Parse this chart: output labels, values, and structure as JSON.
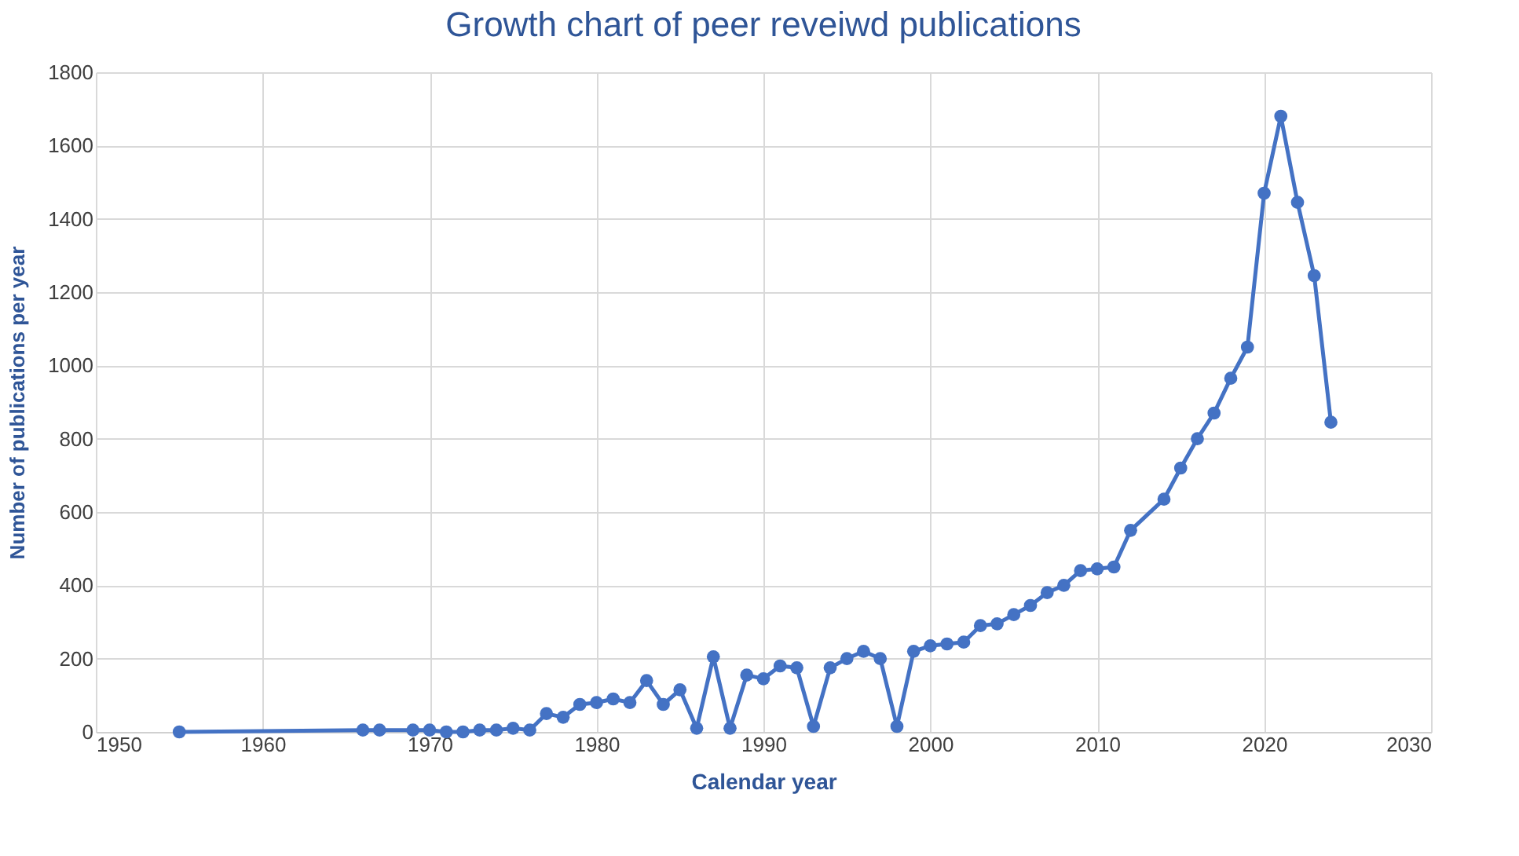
{
  "chart_data": {
    "type": "line",
    "title": "Growth chart of peer reveiwd publications",
    "xlabel": "Calendar year",
    "ylabel": "Number of publications  per year",
    "x": [
      1955,
      1966,
      1967,
      1969,
      1970,
      1971,
      1972,
      1973,
      1974,
      1975,
      1976,
      1977,
      1978,
      1979,
      1980,
      1981,
      1982,
      1983,
      1984,
      1985,
      1986,
      1987,
      1988,
      1989,
      1990,
      1991,
      1992,
      1993,
      1994,
      1995,
      1996,
      1997,
      1998,
      1999,
      2000,
      2001,
      2002,
      2003,
      2004,
      2005,
      2006,
      2007,
      2008,
      2009,
      2010,
      2011,
      2012,
      2014,
      2015,
      2016,
      2017,
      2018,
      2019,
      2020,
      2021,
      2022,
      2023,
      2024
    ],
    "series": [
      {
        "color": "#4472c4",
        "values": [
          0,
          5,
          5,
          5,
          5,
          0,
          0,
          5,
          5,
          10,
          5,
          50,
          40,
          75,
          80,
          90,
          80,
          140,
          75,
          115,
          10,
          205,
          10,
          155,
          145,
          180,
          175,
          15,
          175,
          200,
          220,
          200,
          15,
          220,
          235,
          240,
          245,
          290,
          295,
          320,
          345,
          380,
          400,
          440,
          445,
          450,
          550,
          635,
          720,
          800,
          870,
          965,
          1050,
          1470,
          1680,
          1445,
          1245,
          845
        ]
      }
    ],
    "xlim": [
      1950,
      2030
    ],
    "xticks": [
      1950,
      1960,
      1970,
      1980,
      1990,
      2000,
      2010,
      2020,
      2030
    ],
    "ylim": [
      0,
      1800
    ],
    "yticks": [
      0,
      200,
      400,
      600,
      800,
      1000,
      1200,
      1400,
      1600,
      1800
    ],
    "grid": true,
    "marker": "circle",
    "line_style": "solid"
  }
}
